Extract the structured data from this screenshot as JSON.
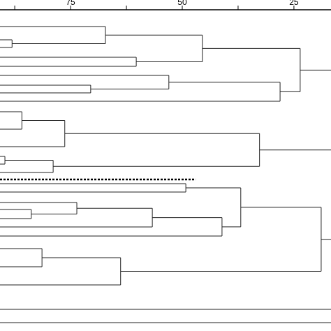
{
  "chart_data": {
    "type": "dendrogram",
    "xlim": [
      90.8,
      16.7
    ],
    "xticks": [
      75,
      50,
      25
    ],
    "minor_xticks": [
      87.5,
      62.5,
      37.5
    ],
    "cut_line": 47,
    "merges": [
      {
        "children": [
          1,
          2
        ],
        "height": 88.1
      },
      {
        "children": [
          0,
          27
        ],
        "height": 67.2
      },
      {
        "children": [
          3,
          4
        ],
        "height": 60.3
      },
      {
        "children": [
          28,
          29
        ],
        "height": 45.5
      },
      {
        "children": [
          6,
          7
        ],
        "height": 70.5
      },
      {
        "children": [
          5,
          31
        ],
        "height": 53.0
      },
      {
        "children": [
          32,
          8
        ],
        "height": 28.1
      },
      {
        "children": [
          30,
          33
        ],
        "height": 23.6
      },
      {
        "children": [
          9,
          10
        ],
        "height": 85.9
      },
      {
        "children": [
          35,
          11
        ],
        "height": 76.3
      },
      {
        "children": [
          12,
          13
        ],
        "height": 89.7
      },
      {
        "children": [
          37,
          14
        ],
        "height": 78.9
      },
      {
        "children": [
          36,
          38
        ],
        "height": 32.7
      },
      {
        "children": [
          18,
          19
        ],
        "height": 83.8
      },
      {
        "children": [
          17,
          40
        ],
        "height": 73.6
      },
      {
        "children": [
          41,
          20
        ],
        "height": 56.7
      },
      {
        "children": [
          42,
          21
        ],
        "height": 41.1
      },
      {
        "children": [
          15,
          16
        ],
        "height": 49.2
      },
      {
        "children": [
          44,
          43
        ],
        "height": 36.9
      },
      {
        "children": [
          22,
          23
        ],
        "height": 81.4
      },
      {
        "children": [
          46,
          24
        ],
        "height": 63.8
      },
      {
        "children": [
          45,
          47
        ],
        "height": 18.9
      }
    ]
  }
}
